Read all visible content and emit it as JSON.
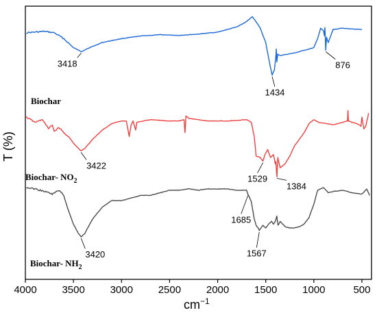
{
  "chart_data": {
    "type": "line",
    "xlabel": "cm",
    "xlabel_superscript": "−1",
    "ylabel": "T (%)",
    "xlim": [
      4000,
      400
    ],
    "x_reversed": true,
    "xticks": [
      4000,
      3500,
      3000,
      2500,
      2000,
      1500,
      1000,
      500
    ],
    "yticks_shown": false,
    "grid": false,
    "series": [
      {
        "name": "Biochar",
        "color": "#1a66d6",
        "points": [
          [
            3990,
            3
          ],
          [
            3900,
            2
          ],
          [
            3800,
            1
          ],
          [
            3700,
            3
          ],
          [
            3600,
            12
          ],
          [
            3500,
            26
          ],
          [
            3418,
            32
          ],
          [
            3350,
            27
          ],
          [
            3200,
            18
          ],
          [
            3000,
            12
          ],
          [
            2800,
            8
          ],
          [
            2600,
            6
          ],
          [
            2400,
            7
          ],
          [
            2200,
            5
          ],
          [
            2000,
            2
          ],
          [
            1800,
            -6
          ],
          [
            1700,
            -14
          ],
          [
            1640,
            -22
          ],
          [
            1560,
            -5
          ],
          [
            1500,
            18
          ],
          [
            1460,
            50
          ],
          [
            1434,
            68
          ],
          [
            1410,
            60
          ],
          [
            1395,
            40
          ],
          [
            1390,
            28
          ],
          [
            1385,
            48
          ],
          [
            1375,
            36
          ],
          [
            1350,
            38
          ],
          [
            1200,
            34
          ],
          [
            1000,
            26
          ],
          [
            960,
            12
          ],
          [
            930,
            -4
          ],
          [
            900,
            0
          ],
          [
            890,
            8
          ],
          [
            885,
            -5
          ],
          [
            876,
            30
          ],
          [
            868,
            10
          ],
          [
            850,
            18
          ],
          [
            800,
            -2
          ],
          [
            700,
            -4
          ],
          [
            600,
            -3
          ],
          [
            500,
            -2
          ]
        ],
        "annotations": [
          {
            "label": "3418",
            "x": 3418
          },
          {
            "label": "1434",
            "x": 1434
          },
          {
            "label": "876",
            "x": 876
          }
        ]
      },
      {
        "name": "Biochar- NO",
        "name_subscript": "2",
        "color": "#ee4040",
        "points": [
          [
            3990,
            0
          ],
          [
            3900,
            8
          ],
          [
            3820,
            4
          ],
          [
            3760,
            18
          ],
          [
            3720,
            12
          ],
          [
            3700,
            22
          ],
          [
            3650,
            16
          ],
          [
            3600,
            24
          ],
          [
            3550,
            30
          ],
          [
            3500,
            40
          ],
          [
            3450,
            48
          ],
          [
            3422,
            52
          ],
          [
            3380,
            48
          ],
          [
            3300,
            34
          ],
          [
            3200,
            20
          ],
          [
            3100,
            10
          ],
          [
            3000,
            6
          ],
          [
            2950,
            6
          ],
          [
            2920,
            30
          ],
          [
            2900,
            12
          ],
          [
            2880,
            6
          ],
          [
            2853,
            20
          ],
          [
            2840,
            8
          ],
          [
            2700,
            4
          ],
          [
            2500,
            6
          ],
          [
            2400,
            6
          ],
          [
            2350,
            4
          ],
          [
            2340,
            24
          ],
          [
            2330,
            -2
          ],
          [
            2300,
            2
          ],
          [
            2100,
            6
          ],
          [
            1900,
            6
          ],
          [
            1700,
            4
          ],
          [
            1650,
            8
          ],
          [
            1620,
            30
          ],
          [
            1600,
            60
          ],
          [
            1560,
            62
          ],
          [
            1529,
            68
          ],
          [
            1510,
            58
          ],
          [
            1480,
            50
          ],
          [
            1450,
            62
          ],
          [
            1420,
            58
          ],
          [
            1400,
            72
          ],
          [
            1395,
            68
          ],
          [
            1384,
            92
          ],
          [
            1375,
            62
          ],
          [
            1350,
            78
          ],
          [
            1300,
            72
          ],
          [
            1250,
            60
          ],
          [
            1200,
            44
          ],
          [
            1100,
            24
          ],
          [
            1050,
            10
          ],
          [
            1000,
            4
          ],
          [
            950,
            8
          ],
          [
            800,
            12
          ],
          [
            700,
            8
          ],
          [
            650,
            6
          ],
          [
            645,
            -10
          ],
          [
            640,
            6
          ],
          [
            600,
            8
          ],
          [
            550,
            10
          ],
          [
            510,
            14
          ],
          [
            500,
            0
          ],
          [
            480,
            18
          ],
          [
            460,
            14
          ],
          [
            430,
            -6
          ]
        ],
        "annotations": [
          {
            "label": "3422",
            "x": 3422
          },
          {
            "label": "1529",
            "x": 1529
          },
          {
            "label": "1384",
            "x": 1384
          }
        ]
      },
      {
        "name": "Biochar- NH",
        "name_subscript": "2",
        "color": "#4a4a4a",
        "points": [
          [
            3990,
            0
          ],
          [
            3900,
            2
          ],
          [
            3800,
            6
          ],
          [
            3720,
            10
          ],
          [
            3650,
            4
          ],
          [
            3600,
            12
          ],
          [
            3550,
            36
          ],
          [
            3500,
            56
          ],
          [
            3450,
            70
          ],
          [
            3420,
            76
          ],
          [
            3380,
            70
          ],
          [
            3300,
            48
          ],
          [
            3200,
            30
          ],
          [
            3100,
            20
          ],
          [
            3000,
            20
          ],
          [
            2900,
            16
          ],
          [
            2800,
            12
          ],
          [
            2700,
            12
          ],
          [
            2600,
            8
          ],
          [
            2500,
            4
          ],
          [
            2400,
            4
          ],
          [
            2300,
            2
          ],
          [
            2200,
            4
          ],
          [
            2100,
            2
          ],
          [
            2000,
            2
          ],
          [
            1900,
            2
          ],
          [
            1800,
            4
          ],
          [
            1700,
            4
          ],
          [
            1685,
            10
          ],
          [
            1650,
            22
          ],
          [
            1620,
            48
          ],
          [
            1600,
            58
          ],
          [
            1580,
            62
          ],
          [
            1567,
            66
          ],
          [
            1530,
            58
          ],
          [
            1500,
            62
          ],
          [
            1470,
            56
          ],
          [
            1440,
            52
          ],
          [
            1420,
            56
          ],
          [
            1400,
            52
          ],
          [
            1385,
            44
          ],
          [
            1372,
            58
          ],
          [
            1350,
            52
          ],
          [
            1300,
            60
          ],
          [
            1250,
            62
          ],
          [
            1200,
            62
          ],
          [
            1150,
            60
          ],
          [
            1100,
            56
          ],
          [
            1050,
            46
          ],
          [
            1000,
            26
          ],
          [
            960,
            4
          ],
          [
            900,
            0
          ],
          [
            850,
            8
          ],
          [
            800,
            6
          ],
          [
            700,
            4
          ],
          [
            600,
            8
          ],
          [
            500,
            10
          ],
          [
            450,
            2
          ],
          [
            420,
            12
          ]
        ],
        "annotations": [
          {
            "label": "3420",
            "x": 3420
          },
          {
            "label": "1685",
            "x": 1685
          },
          {
            "label": "1567",
            "x": 1567
          }
        ]
      }
    ]
  }
}
